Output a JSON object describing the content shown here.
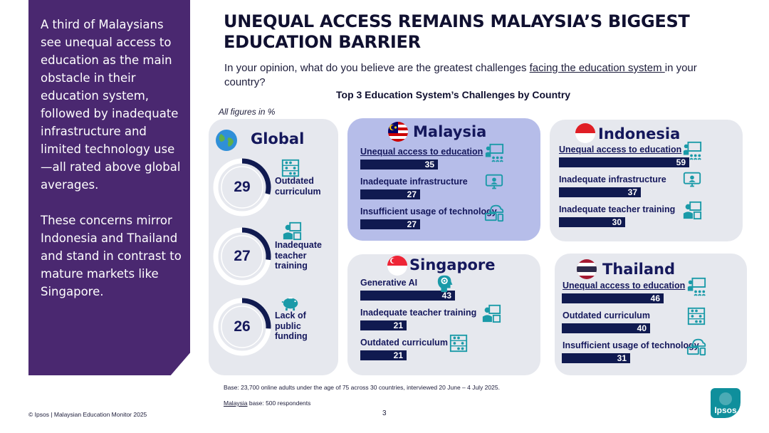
{
  "side_panel": {
    "paragraph1": "A third of Malaysians see unequal access to education as the main obstacle in their education system, followed by inadequate infrastructure and limited technology use—all rated above global averages.",
    "paragraph2": "These concerns mirror Indonesia and Thailand and stand in contrast to mature markets like Singapore.",
    "color": "#4a2870"
  },
  "header": {
    "title": "UNEQUAL ACCESS REMAINS MALAYSIA’S BIGGEST EDUCATION BARRIER",
    "question_prefix": "In your opinion, what do you believe are the greatest challenges ",
    "question_underlined": "facing the education system ",
    "question_suffix": "in your country?"
  },
  "chart_data": {
    "type": "bar",
    "title": "Top 3 Education System’s Challenges  by Country",
    "note": "All figures in %",
    "global": {
      "name": "Global",
      "items": [
        {
          "label": "Outdated curriculum",
          "value": 29,
          "icon": "abacus-icon"
        },
        {
          "label": "Inadequate teacher training",
          "value": 27,
          "icon": "teacher-icon"
        },
        {
          "label": "Lack of public funding",
          "value": 26,
          "icon": "piggy-bank-icon"
        }
      ]
    },
    "countries": [
      {
        "name": "Malaysia",
        "highlight": true,
        "items": [
          {
            "label": "Unequal access to education",
            "value": 35,
            "underline": true,
            "icon": "presentation-icon"
          },
          {
            "label": "Inadequate infrastructure",
            "value": 27,
            "underline": false,
            "icon": "monitor-icon"
          },
          {
            "label": "Insufficient usage of technology",
            "value": 27,
            "underline": false,
            "icon": "cloud-devices-icon"
          }
        ]
      },
      {
        "name": "Indonesia",
        "highlight": false,
        "items": [
          {
            "label": "Unequal access to education",
            "value": 59,
            "underline": true,
            "icon": "presentation-icon"
          },
          {
            "label": "Inadequate infrastructure",
            "value": 37,
            "underline": false,
            "icon": "monitor-icon"
          },
          {
            "label": "Inadequate teacher training",
            "value": 30,
            "underline": false,
            "icon": "teacher-icon"
          }
        ]
      },
      {
        "name": "Singapore",
        "highlight": false,
        "items": [
          {
            "label": "Generative AI",
            "value": 43,
            "underline": false,
            "icon": "ai-head-icon"
          },
          {
            "label": "Inadequate teacher training",
            "value": 21,
            "underline": false,
            "icon": "teacher-icon"
          },
          {
            "label": "Outdated curriculum",
            "value": 21,
            "underline": false,
            "icon": "abacus-icon"
          }
        ]
      },
      {
        "name": "Thailand",
        "highlight": false,
        "items": [
          {
            "label": "Unequal access to education",
            "value": 46,
            "underline": true,
            "icon": "presentation-icon"
          },
          {
            "label": "Outdated curriculum",
            "value": 40,
            "underline": false,
            "icon": "abacus-icon"
          },
          {
            "label": "Insufficient usage of technology",
            "value": 31,
            "underline": false,
            "icon": "cloud-devices-icon"
          }
        ]
      }
    ],
    "colors": {
      "bar": "#101a50",
      "card": "#e6e8ee",
      "highlight_card": "#b6bde9",
      "icon": "#1a9aa8"
    }
  },
  "footer": {
    "base_note": "Base: 23,700 online adults under the age of 75 across 30 countries, interviewed 20 June – 4 July 2025.",
    "malaysia_word": "Malaysia",
    "malaysia_base_rest": " base: 500 respondents",
    "copyright": "© Ipsos | Malaysian Education Monitor 2025",
    "page_number": "3",
    "logo_text": "Ipsos"
  }
}
